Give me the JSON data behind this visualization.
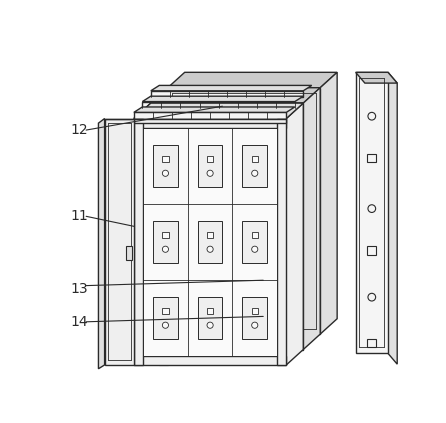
{
  "bg_color": "#ffffff",
  "lc": "#2a2a2a",
  "lw": 1.0,
  "lw_thin": 0.6,
  "fc_white": "#fafafa",
  "fc_light": "#efefef",
  "fc_mid": "#e0e0e0",
  "fc_dark": "#cccccc",
  "fc_panel": "#f5f5f5"
}
